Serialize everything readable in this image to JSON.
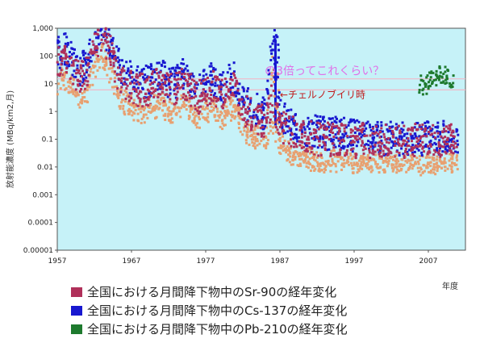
{
  "colors": {
    "background": "#c6f2f8",
    "sr90": "#b0305a",
    "cs137": "#1818d0",
    "pb210": "#1e7a2e",
    "cs137_low": "#e8a070",
    "ref_line": "#f0b8c8",
    "annotation_pink": "#e070e8",
    "annotation_red": "#c01818"
  },
  "chart_data": {
    "type": "scatter",
    "title": "",
    "xlabel": "年度",
    "ylabel": "放射能濃度 (MBq/km2,月)",
    "y_scale": "log",
    "xlim": [
      1957,
      2012
    ],
    "ylim": [
      1e-05,
      1000
    ],
    "x_ticks": [
      1957,
      1967,
      1977,
      1987,
      1997,
      2007
    ],
    "x_tick_labels": [
      "1957",
      "1967",
      "1977",
      "1987",
      "1997",
      "2007"
    ],
    "y_ticks": [
      1e-05,
      0.0001,
      0.001,
      0.01,
      0.1,
      1,
      10,
      100,
      1000
    ],
    "y_tick_labels": [
      "0.00001",
      "0.0001",
      "0.001",
      "0.01",
      "0.1",
      "1",
      "10",
      "100",
      "1,000"
    ],
    "grid": false,
    "legend_position": "bottom",
    "series": [
      {
        "name": "全国における月間降下物中のSr-90の経年変化",
        "color": "#b0305a",
        "points": [
          [
            1957.5,
            30
          ],
          [
            1958.5,
            45
          ],
          [
            1959.5,
            20
          ],
          [
            1960.5,
            8
          ],
          [
            1961.5,
            12
          ],
          [
            1962.5,
            120
          ],
          [
            1963.5,
            300
          ],
          [
            1964.5,
            90
          ],
          [
            1965.5,
            15
          ],
          [
            1966.5,
            6
          ],
          [
            1967.5,
            4
          ],
          [
            1968.5,
            3
          ],
          [
            1969.5,
            3
          ],
          [
            1970.5,
            4
          ],
          [
            1971.5,
            5
          ],
          [
            1972.5,
            3
          ],
          [
            1973.5,
            3
          ],
          [
            1974.5,
            6
          ],
          [
            1975.5,
            3
          ],
          [
            1976.5,
            1.5
          ],
          [
            1977.5,
            3
          ],
          [
            1978.5,
            4
          ],
          [
            1979.5,
            1.5
          ],
          [
            1980.5,
            3
          ],
          [
            1981.5,
            4
          ],
          [
            1982.5,
            0.6
          ],
          [
            1983.5,
            0.4
          ],
          [
            1984.5,
            0.3
          ],
          [
            1985.5,
            0.2
          ],
          [
            1986.5,
            1.5
          ],
          [
            1987.5,
            0.15
          ],
          [
            1988.5,
            0.1
          ],
          [
            1989.5,
            0.08
          ],
          [
            1990.5,
            0.07
          ],
          [
            1991.5,
            0.06
          ],
          [
            1992.5,
            0.05
          ],
          [
            1993.5,
            0.05
          ],
          [
            1994.5,
            0.05
          ],
          [
            1995.5,
            0.05
          ],
          [
            1996.5,
            0.05
          ],
          [
            1997.5,
            0.04
          ],
          [
            1998.5,
            0.05
          ],
          [
            1999.5,
            0.04
          ],
          [
            2000.5,
            0.05
          ],
          [
            2001.5,
            0.04
          ],
          [
            2002.5,
            0.05
          ],
          [
            2003.5,
            0.04
          ],
          [
            2004.5,
            0.04
          ],
          [
            2005.5,
            0.05
          ],
          [
            2006.5,
            0.04
          ],
          [
            2007.5,
            0.05
          ],
          [
            2008.5,
            0.04
          ],
          [
            2009.5,
            0.05
          ],
          [
            2010.5,
            0.05
          ]
        ]
      },
      {
        "name": "全国における月間降下物中のCs-137の経年変化",
        "color": "#1818d0",
        "points": [
          [
            1957.5,
            60
          ],
          [
            1958.5,
            90
          ],
          [
            1959.5,
            40
          ],
          [
            1960.5,
            15
          ],
          [
            1961.5,
            25
          ],
          [
            1962.5,
            250
          ],
          [
            1963.5,
            600
          ],
          [
            1964.5,
            180
          ],
          [
            1965.5,
            30
          ],
          [
            1966.5,
            12
          ],
          [
            1967.5,
            8
          ],
          [
            1968.5,
            6
          ],
          [
            1969.5,
            6
          ],
          [
            1970.5,
            8
          ],
          [
            1971.5,
            10
          ],
          [
            1972.5,
            6
          ],
          [
            1973.5,
            6
          ],
          [
            1974.5,
            12
          ],
          [
            1975.5,
            6
          ],
          [
            1976.5,
            3
          ],
          [
            1977.5,
            6
          ],
          [
            1978.5,
            8
          ],
          [
            1979.5,
            3
          ],
          [
            1980.5,
            6
          ],
          [
            1981.5,
            8
          ],
          [
            1982.5,
            1.2
          ],
          [
            1983.5,
            0.8
          ],
          [
            1984.5,
            0.6
          ],
          [
            1985.5,
            0.4
          ],
          [
            1986.4,
            300
          ],
          [
            1986.6,
            40
          ],
          [
            1987.5,
            0.4
          ],
          [
            1988.5,
            0.2
          ],
          [
            1989.5,
            0.15
          ],
          [
            1990.5,
            0.12
          ],
          [
            1991.5,
            0.1
          ],
          [
            1992.5,
            0.1
          ],
          [
            1993.5,
            0.08
          ],
          [
            1994.5,
            0.08
          ],
          [
            1995.5,
            0.08
          ],
          [
            1996.5,
            0.07
          ],
          [
            1997.5,
            0.07
          ],
          [
            1998.5,
            0.06
          ],
          [
            1999.5,
            0.06
          ],
          [
            2000.5,
            0.06
          ],
          [
            2001.5,
            0.05
          ],
          [
            2002.5,
            0.06
          ],
          [
            2003.5,
            0.05
          ],
          [
            2004.5,
            0.05
          ],
          [
            2005.5,
            0.06
          ],
          [
            2006.5,
            0.05
          ],
          [
            2007.5,
            0.06
          ],
          [
            2008.5,
            0.05
          ],
          [
            2009.5,
            0.06
          ],
          [
            2010.5,
            0.06
          ]
        ]
      },
      {
        "name": "全国における月間降下物中のPb-210の経年変化",
        "color": "#1e7a2e",
        "points": [
          [
            2006.2,
            8
          ],
          [
            2006.5,
            10
          ],
          [
            2006.8,
            7
          ],
          [
            2007.0,
            12
          ],
          [
            2007.3,
            9
          ],
          [
            2007.5,
            14
          ],
          [
            2007.8,
            11
          ],
          [
            2008.0,
            15
          ],
          [
            2008.3,
            10
          ],
          [
            2008.5,
            18
          ],
          [
            2008.8,
            13
          ],
          [
            2009.0,
            22
          ],
          [
            2009.3,
            16
          ],
          [
            2009.5,
            25
          ],
          [
            2009.8,
            19
          ],
          [
            2010.0,
            28
          ],
          [
            2010.3,
            20
          ],
          [
            2010.6,
            15
          ]
        ]
      }
    ],
    "reference_lines": [
      15,
      6
    ],
    "annotations": [
      {
        "text": "の3倍ってこれくらい？",
        "x": 1993,
        "y": 15
      },
      {
        "text": "←チェルノブイリ時",
        "x": 1987,
        "y": 4
      }
    ]
  },
  "legend": {
    "items": [
      {
        "label": "全国における月間降下物中の",
        "tag": "Sr-90",
        "suffix": "の経年変化",
        "color": "#b0305a"
      },
      {
        "label": "全国における月間降下物中の",
        "tag": "Cs-137",
        "suffix": "の経年変化",
        "color": "#1818d0"
      },
      {
        "label": "全国における月間降下物中の",
        "tag": "Pb-210",
        "suffix": "の経年変化",
        "color": "#1e7a2e"
      }
    ]
  }
}
